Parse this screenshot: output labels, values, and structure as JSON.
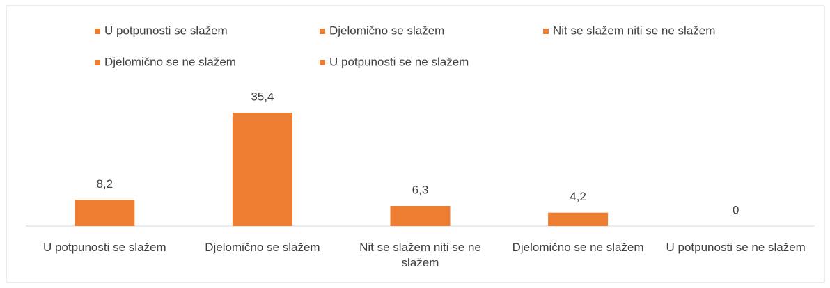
{
  "chart_data": {
    "type": "bar",
    "categories": [
      "U potpunosti se slažem",
      "Djelomično se slažem",
      "Nit se slažem niti se ne slažem",
      "Djelomično se ne slažem",
      "U potpunosti se ne slažem"
    ],
    "values": [
      8.2,
      35.4,
      6.3,
      4.2,
      0
    ],
    "value_labels": [
      "8,2",
      "35,4",
      "6,3",
      "4,2",
      "0"
    ],
    "color": "#ed7d31",
    "ylim": [
      0,
      40
    ],
    "legend": "top"
  }
}
